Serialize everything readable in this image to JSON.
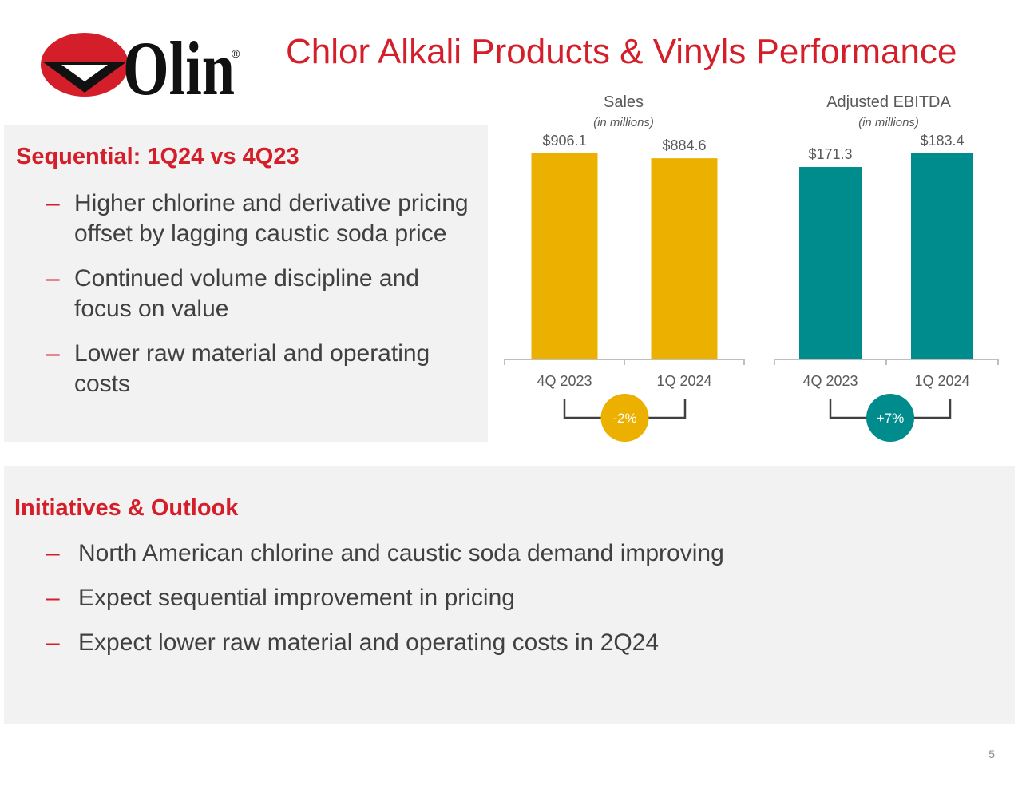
{
  "header": {
    "title": "Chlor Alkali Products & Vinyls Performance",
    "logo_text": "Olin",
    "logo_mark": "®"
  },
  "sequential": {
    "heading": "Sequential: 1Q24 vs 4Q23",
    "bullets": [
      "Higher chlorine and derivative pricing offset by lagging caustic soda price",
      "Continued volume discipline and focus on value",
      "Lower raw material and operating costs"
    ]
  },
  "outlook": {
    "heading": "Initiatives & Outlook",
    "bullets": [
      "North American chlorine and caustic soda demand improving",
      "Expect sequential improvement in pricing",
      "Expect lower raw material and operating costs in 2Q24"
    ]
  },
  "bullet_symbol": "–",
  "page_number": "5",
  "colors": {
    "brand_red": "#d41f2b",
    "sales_bar": "#ebb000",
    "ebitda_bar": "#008c8c",
    "panel_bg": "#f2f2f2"
  },
  "chart_data": [
    {
      "type": "bar",
      "title": "Sales",
      "subtitle": "(in millions)",
      "categories": [
        "4Q 2023",
        "1Q 2024"
      ],
      "values": [
        906.1,
        884.6
      ],
      "data_labels": [
        "$906.1",
        "$884.6"
      ],
      "change_label": "-2%",
      "color": "#ebb000",
      "ylim": [
        0,
        906.1
      ]
    },
    {
      "type": "bar",
      "title": "Adjusted EBITDA",
      "subtitle": "(in millions)",
      "categories": [
        "4Q 2023",
        "1Q 2024"
      ],
      "values": [
        171.3,
        183.4
      ],
      "data_labels": [
        "$171.3",
        "$183.4"
      ],
      "change_label": "+7%",
      "color": "#008c8c",
      "ylim": [
        0,
        183.4
      ]
    }
  ]
}
